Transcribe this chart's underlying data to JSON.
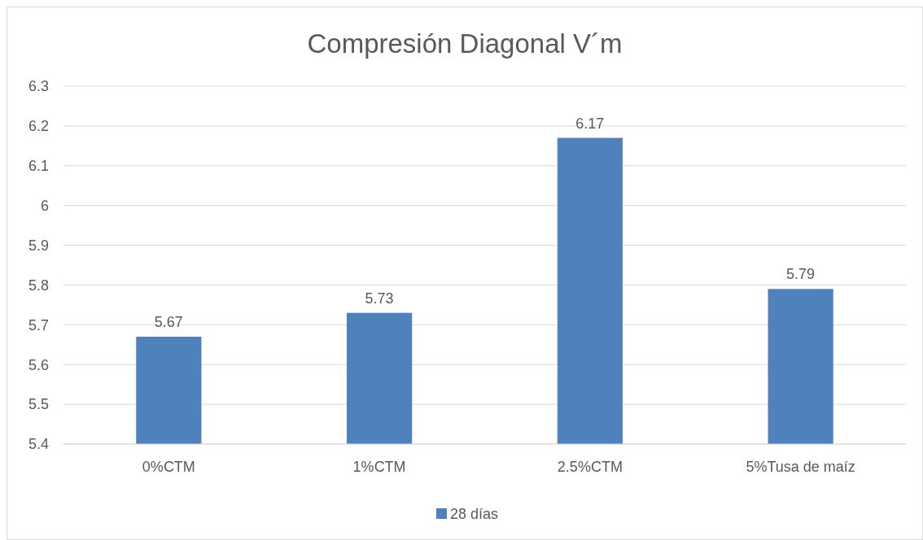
{
  "chart_data": {
    "type": "bar",
    "title": "Compresión Diagonal V´m",
    "categories": [
      "0%CTM",
      "1%CTM",
      "2.5%CTM",
      "5%Tusa de maíz"
    ],
    "series": [
      {
        "name": "28 días",
        "color": "#4f81bd",
        "values": [
          5.67,
          5.73,
          6.17,
          5.79
        ]
      }
    ],
    "ylim": [
      5.4,
      6.3
    ],
    "yticks": [
      5.4,
      5.5,
      5.6,
      5.7,
      5.8,
      5.9,
      {
        "value": 6,
        "label": "6"
      },
      6.1,
      6.2,
      6.3
    ],
    "grid": "y",
    "legend": "bottom",
    "data_labels": true
  }
}
